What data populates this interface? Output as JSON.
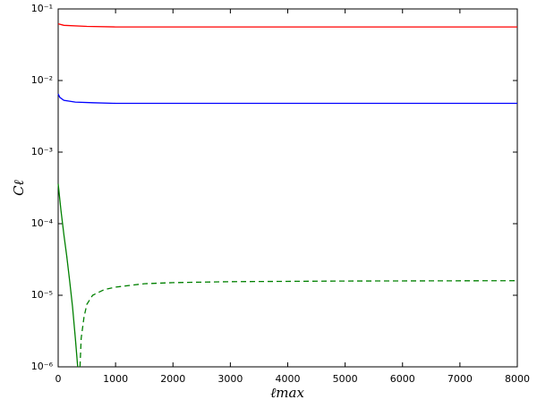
{
  "chart_data": {
    "type": "line",
    "x_label": "ℓmax",
    "y_label": "Cℓ",
    "xlim": [
      0,
      8000
    ],
    "xticks": [
      0,
      1000,
      2000,
      3000,
      4000,
      5000,
      6000,
      7000,
      8000
    ],
    "ylim": [
      1e-06,
      0.1
    ],
    "log_y": true,
    "yticks": [
      {
        "value": 0.1,
        "label": "10⁻¹"
      },
      {
        "value": 0.01,
        "label": "10⁻²"
      },
      {
        "value": 0.001,
        "label": "10⁻³"
      },
      {
        "value": 0.0001,
        "label": "10⁻⁴"
      },
      {
        "value": 1e-05,
        "label": "10⁻⁵"
      },
      {
        "value": 1e-06,
        "label": "10⁻⁶"
      }
    ],
    "series": [
      {
        "color": "#ff0000",
        "linestyle": "solid",
        "x": [
          0,
          100,
          500,
          1000,
          2000,
          4000,
          8000
        ],
        "values": [
          0.062,
          0.059,
          0.057,
          0.056,
          0.056,
          0.056,
          0.056
        ]
      },
      {
        "color": "#0000ff",
        "linestyle": "solid",
        "x": [
          0,
          30,
          100,
          300,
          600,
          1000,
          2000,
          8000
        ],
        "values": [
          0.0065,
          0.0058,
          0.0053,
          0.005,
          0.0049,
          0.0048,
          0.0048,
          0.0048
        ]
      },
      {
        "color": "#008000",
        "linestyle": "solid",
        "x": [
          0,
          50,
          100,
          150,
          200,
          250,
          300,
          340
        ],
        "values": [
          0.00036,
          0.00015,
          7e-05,
          3.5e-05,
          1.6e-05,
          7e-06,
          2.5e-06,
          1e-06
        ]
      },
      {
        "color": "#008000",
        "linestyle": "dashed",
        "x": [
          380,
          400,
          450,
          500,
          600,
          800,
          1000,
          1500,
          2000,
          3000,
          5000,
          8000
        ],
        "values": [
          1e-06,
          2.5e-06,
          5e-06,
          7.5e-06,
          1e-05,
          1.2e-05,
          1.3e-05,
          1.45e-05,
          1.5e-05,
          1.55e-05,
          1.58e-05,
          1.6e-05
        ]
      }
    ]
  }
}
